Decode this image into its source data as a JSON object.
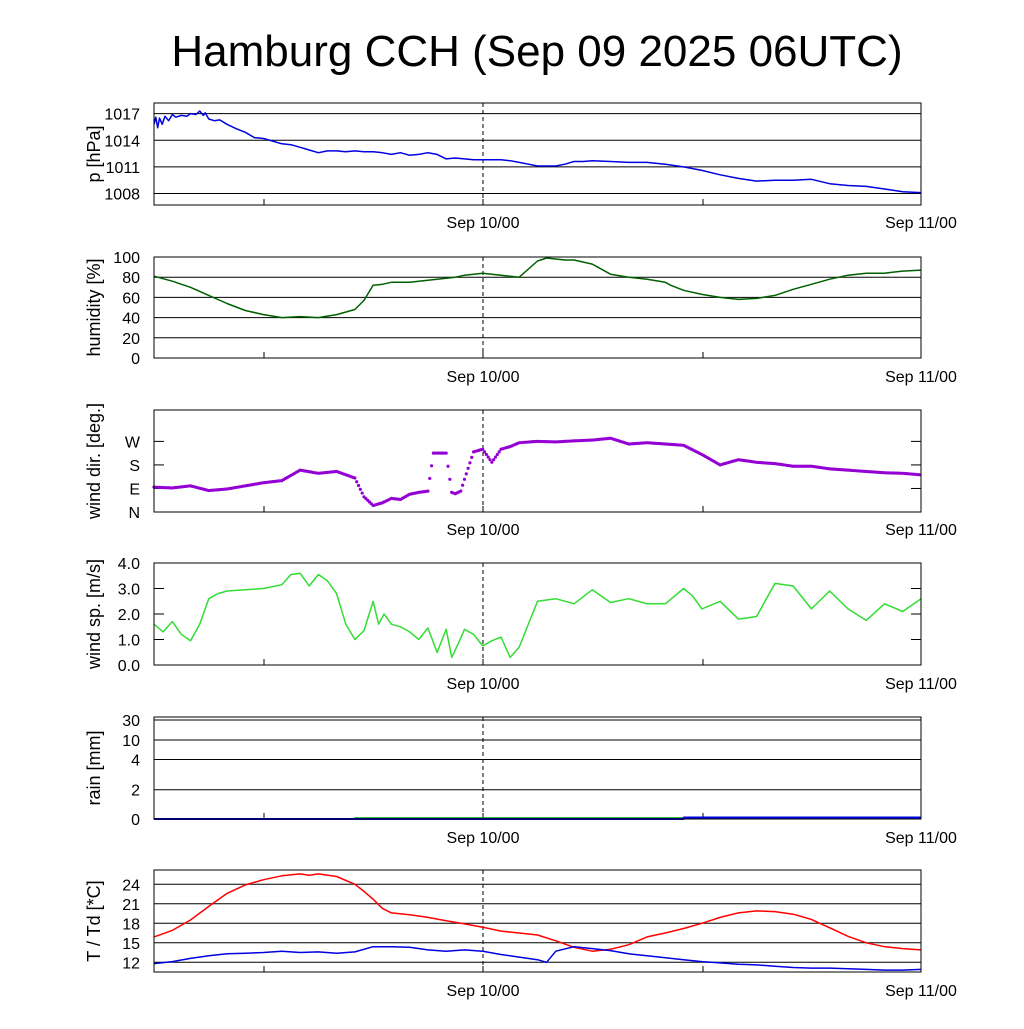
{
  "title": "Hamburg CCH (Sep 09 2025 06UTC)",
  "x_tick_labels": [
    "Sep 10/00",
    "Sep 11/00"
  ],
  "colors": {
    "pressure": "#0000e0",
    "humidity": "#006000",
    "wind_dir": "#9400d3",
    "wind_speed": "#33dd33",
    "rain_green": "#00a000",
    "rain_blue": "#0000e0",
    "temperature": "#ff0000",
    "dewpoint": "#0000e0"
  },
  "chart_data": [
    {
      "type": "line",
      "ylabel": "p [hPa]",
      "ylim": [
        1006.7,
        1018.2
      ],
      "yticks": [
        1008,
        1011,
        1014,
        1017
      ],
      "ytick_labels": [
        "1008",
        "1011",
        "1014",
        "1017"
      ],
      "grid": true,
      "x_unit": "hours since Sep 09 06UTC",
      "xlim": [
        0,
        42
      ],
      "series": [
        {
          "color_key": "pressure",
          "x": [
            0,
            0.1,
            0.2,
            0.3,
            0.45,
            0.6,
            0.8,
            1.0,
            1.2,
            1.5,
            1.8,
            2.0,
            2.3,
            2.5,
            2.7,
            2.8,
            3.0,
            3.3,
            3.6,
            4.0,
            4.5,
            5.0,
            5.5,
            6.0,
            6.5,
            7.0,
            7.5,
            8.0,
            8.5,
            9.0,
            9.5,
            10.0,
            10.5,
            11.0,
            11.5,
            12.0,
            12.5,
            13.0,
            13.5,
            14.0,
            14.5,
            15.0,
            15.5,
            16.0,
            16.5,
            17.0,
            17.5,
            18.0,
            18.5,
            19.0,
            19.5,
            20.0,
            20.5,
            21.0,
            21.5,
            22.0,
            22.5,
            23.0,
            23.5,
            24.0,
            25.0,
            26.0,
            27.0,
            28.0,
            29.0,
            30.0,
            31.0,
            32.0,
            33.0,
            34.0,
            35.0,
            36.0,
            37.0,
            38.0,
            39.0,
            40.0,
            41.0,
            42.0
          ],
          "values": [
            1015.8,
            1016.6,
            1015.4,
            1016.5,
            1015.8,
            1016.7,
            1016.2,
            1016.9,
            1016.6,
            1016.8,
            1016.7,
            1017.0,
            1016.9,
            1017.3,
            1016.8,
            1017.1,
            1016.4,
            1016.2,
            1016.3,
            1015.8,
            1015.3,
            1014.9,
            1014.3,
            1014.2,
            1013.9,
            1013.6,
            1013.5,
            1013.2,
            1012.9,
            1012.6,
            1012.8,
            1012.8,
            1012.7,
            1012.8,
            1012.7,
            1012.7,
            1012.6,
            1012.4,
            1012.6,
            1012.3,
            1012.4,
            1012.6,
            1012.4,
            1011.9,
            1012.0,
            1011.9,
            1011.8,
            1011.8,
            1011.8,
            1011.8,
            1011.7,
            1011.5,
            1011.3,
            1011.1,
            1011.1,
            1011.1,
            1011.3,
            1011.6,
            1011.6,
            1011.7,
            1011.6,
            1011.5,
            1011.5,
            1011.3,
            1011.0,
            1010.6,
            1010.1,
            1009.7,
            1009.4,
            1009.5,
            1009.5,
            1009.6,
            1009.1,
            1008.9,
            1008.8,
            1008.5,
            1008.2,
            1008.1
          ]
        }
      ]
    },
    {
      "type": "line",
      "ylabel": "humidity [%]",
      "ylim": [
        0,
        100
      ],
      "yticks": [
        0,
        20,
        40,
        60,
        80,
        100
      ],
      "ytick_labels": [
        "0",
        "20",
        "40",
        "60",
        "80",
        "100"
      ],
      "grid": true,
      "x_unit": "hours since Sep 09 06UTC",
      "xlim": [
        0,
        42
      ],
      "series": [
        {
          "color_key": "humidity",
          "x": [
            0,
            1,
            2,
            3,
            4,
            5,
            6,
            7,
            8,
            9,
            10,
            11,
            11.5,
            12,
            12.5,
            13,
            14,
            15,
            16,
            16.5,
            17,
            18,
            19,
            20,
            21,
            21.5,
            22,
            22.5,
            23,
            24,
            25,
            26,
            27,
            28,
            28.3,
            29,
            30,
            31,
            32,
            33,
            34,
            35,
            36,
            37,
            38,
            39,
            40,
            41,
            42
          ],
          "values": [
            81,
            76,
            70,
            62,
            54,
            47,
            43,
            40,
            41,
            40,
            43,
            48,
            57,
            72,
            73,
            75,
            75,
            77,
            79,
            80,
            82,
            84,
            82,
            80,
            96,
            99,
            98,
            97,
            97,
            93,
            83,
            80,
            78,
            75,
            72,
            67,
            63,
            60,
            58,
            59,
            62,
            68,
            73,
            78,
            82,
            84,
            84,
            86,
            87
          ]
        }
      ]
    },
    {
      "type": "scatter",
      "ylabel": "wind dir. [deg.]",
      "ylim": [
        0,
        390
      ],
      "yticks": [
        0,
        90,
        180,
        270
      ],
      "ytick_labels": [
        "N",
        "E",
        "S",
        "W"
      ],
      "grid": false,
      "x_unit": "hours since Sep 09 06UTC",
      "xlim": [
        0,
        42
      ],
      "series": [
        {
          "color_key": "wind_dir",
          "x": [
            0,
            1,
            2,
            3,
            4,
            5,
            6,
            7,
            8,
            9,
            10,
            11,
            11.5,
            12,
            12.5,
            13,
            13.5,
            14,
            14.5,
            15,
            15.3,
            16,
            16.3,
            16.5,
            16.8,
            17,
            17.5,
            18,
            18.5,
            19,
            19.5,
            20,
            21,
            22,
            23,
            24,
            25,
            26,
            27,
            28,
            29,
            30,
            31,
            32,
            33,
            34,
            35,
            36,
            37,
            38,
            39,
            40,
            41,
            42
          ],
          "values": [
            95,
            92,
            100,
            82,
            88,
            100,
            112,
            120,
            160,
            148,
            155,
            130,
            58,
            25,
            35,
            52,
            48,
            68,
            75,
            80,
            225,
            225,
            75,
            70,
            80,
            125,
            230,
            240,
            190,
            240,
            250,
            265,
            270,
            268,
            272,
            275,
            282,
            260,
            265,
            260,
            255,
            220,
            180,
            200,
            190,
            185,
            175,
            175,
            165,
            160,
            155,
            150,
            148,
            142
          ]
        }
      ]
    },
    {
      "type": "line",
      "ylabel": "wind sp. [m/s]",
      "ylim": [
        0,
        4
      ],
      "yticks": [
        0,
        1,
        2,
        3,
        4
      ],
      "ytick_labels": [
        "0.0",
        "1.0",
        "2.0",
        "3.0",
        "4.0"
      ],
      "grid": false,
      "x_unit": "hours since Sep 09 06UTC",
      "xlim": [
        0,
        42
      ],
      "series": [
        {
          "color_key": "wind_speed",
          "x": [
            0,
            0.5,
            1,
            1.5,
            2,
            2.5,
            3,
            3.5,
            4,
            5,
            6,
            7,
            7.5,
            8,
            8.5,
            9,
            9.5,
            10,
            10.5,
            11,
            11.5,
            12,
            12.3,
            12.6,
            13,
            13.5,
            14,
            14.5,
            15,
            15.5,
            16,
            16.3,
            16.7,
            17,
            17.5,
            18,
            18.5,
            19,
            19.5,
            20,
            21,
            22,
            23,
            24,
            25,
            26,
            27,
            28,
            29,
            29.5,
            30,
            31,
            32,
            33,
            34,
            35,
            36,
            37,
            38,
            39,
            40,
            41,
            42
          ],
          "values": [
            1.6,
            1.3,
            1.7,
            1.2,
            0.95,
            1.6,
            2.6,
            2.8,
            2.9,
            2.95,
            3.0,
            3.15,
            3.55,
            3.6,
            3.1,
            3.55,
            3.3,
            2.8,
            1.6,
            1.0,
            1.35,
            2.5,
            1.6,
            2.0,
            1.6,
            1.5,
            1.3,
            1.0,
            1.45,
            0.5,
            1.4,
            0.3,
            0.9,
            1.4,
            1.2,
            0.75,
            0.95,
            1.1,
            0.3,
            0.7,
            2.5,
            2.6,
            2.4,
            2.95,
            2.45,
            2.6,
            2.4,
            2.4,
            3.0,
            2.7,
            2.2,
            2.5,
            1.8,
            1.9,
            3.2,
            3.1,
            2.2,
            2.9,
            2.2,
            1.75,
            2.4,
            2.1,
            2.6
          ]
        }
      ]
    },
    {
      "type": "area",
      "ylabel": "rain [mm]",
      "ylim": [
        0,
        30
      ],
      "scale": "nonlinear",
      "yticks": [
        0,
        2,
        4,
        10,
        30
      ],
      "ytick_labels": [
        "0",
        "2",
        "4",
        "10",
        "30"
      ],
      "grid": true,
      "x_unit": "hours since Sep 09 06UTC",
      "xlim": [
        0,
        42
      ],
      "series": [
        {
          "color_key": "rain_green",
          "x": [
            0,
            11,
            11.01,
            42
          ],
          "values": [
            0,
            0,
            0.05,
            0.05
          ]
        },
        {
          "color_key": "rain_blue",
          "x": [
            0,
            29,
            29.01,
            42
          ],
          "values": [
            0,
            0,
            0.1,
            0.1
          ]
        }
      ]
    },
    {
      "type": "line",
      "ylabel": "T / Td [*C]",
      "ylim": [
        10.5,
        26.2
      ],
      "yticks": [
        12,
        15,
        18,
        21,
        24
      ],
      "ytick_labels": [
        "12",
        "15",
        "18",
        "21",
        "24"
      ],
      "grid": true,
      "x_unit": "hours since Sep 09 06UTC",
      "xlim": [
        0,
        42
      ],
      "series": [
        {
          "color_key": "temperature",
          "x": [
            0,
            1,
            2,
            3,
            4,
            5,
            6,
            7,
            8,
            8.5,
            9,
            10,
            11,
            11.5,
            12,
            12.5,
            13,
            14,
            15,
            16,
            17,
            18,
            19,
            20,
            21,
            22,
            23,
            24,
            25,
            26,
            27,
            28,
            29,
            30,
            31,
            32,
            33,
            34,
            35,
            36,
            37,
            38,
            39,
            40,
            41,
            42
          ],
          "values": [
            15.9,
            16.9,
            18.5,
            20.6,
            22.6,
            23.9,
            24.7,
            25.3,
            25.6,
            25.4,
            25.6,
            25.2,
            24.0,
            22.9,
            21.7,
            20.3,
            19.6,
            19.3,
            18.9,
            18.4,
            17.9,
            17.4,
            16.8,
            16.5,
            16.2,
            15.3,
            14.3,
            13.7,
            14.0,
            14.7,
            15.9,
            16.5,
            17.2,
            18.0,
            18.9,
            19.6,
            19.9,
            19.8,
            19.4,
            18.6,
            17.3,
            16.0,
            15.0,
            14.4,
            14.1,
            13.9
          ]
        },
        {
          "color_key": "dewpoint",
          "x": [
            0,
            1,
            2,
            3,
            4,
            5,
            6,
            7,
            8,
            9,
            10,
            11,
            12,
            13,
            14,
            15,
            16,
            17,
            18,
            19,
            20,
            21,
            21.5,
            22,
            23,
            24,
            25,
            26,
            27,
            28,
            29,
            30,
            31,
            32,
            33,
            34,
            35,
            36,
            37,
            38,
            39,
            40,
            41,
            42
          ],
          "values": [
            11.8,
            12.1,
            12.6,
            13.0,
            13.3,
            13.4,
            13.5,
            13.7,
            13.5,
            13.6,
            13.4,
            13.6,
            14.4,
            14.4,
            14.3,
            13.9,
            13.7,
            13.9,
            13.7,
            13.2,
            12.8,
            12.4,
            12.0,
            13.7,
            14.4,
            14.1,
            13.8,
            13.3,
            13.0,
            12.7,
            12.4,
            12.1,
            11.9,
            11.7,
            11.6,
            11.4,
            11.2,
            11.1,
            11.1,
            11.0,
            10.9,
            10.8,
            10.8,
            10.9
          ]
        }
      ]
    }
  ]
}
